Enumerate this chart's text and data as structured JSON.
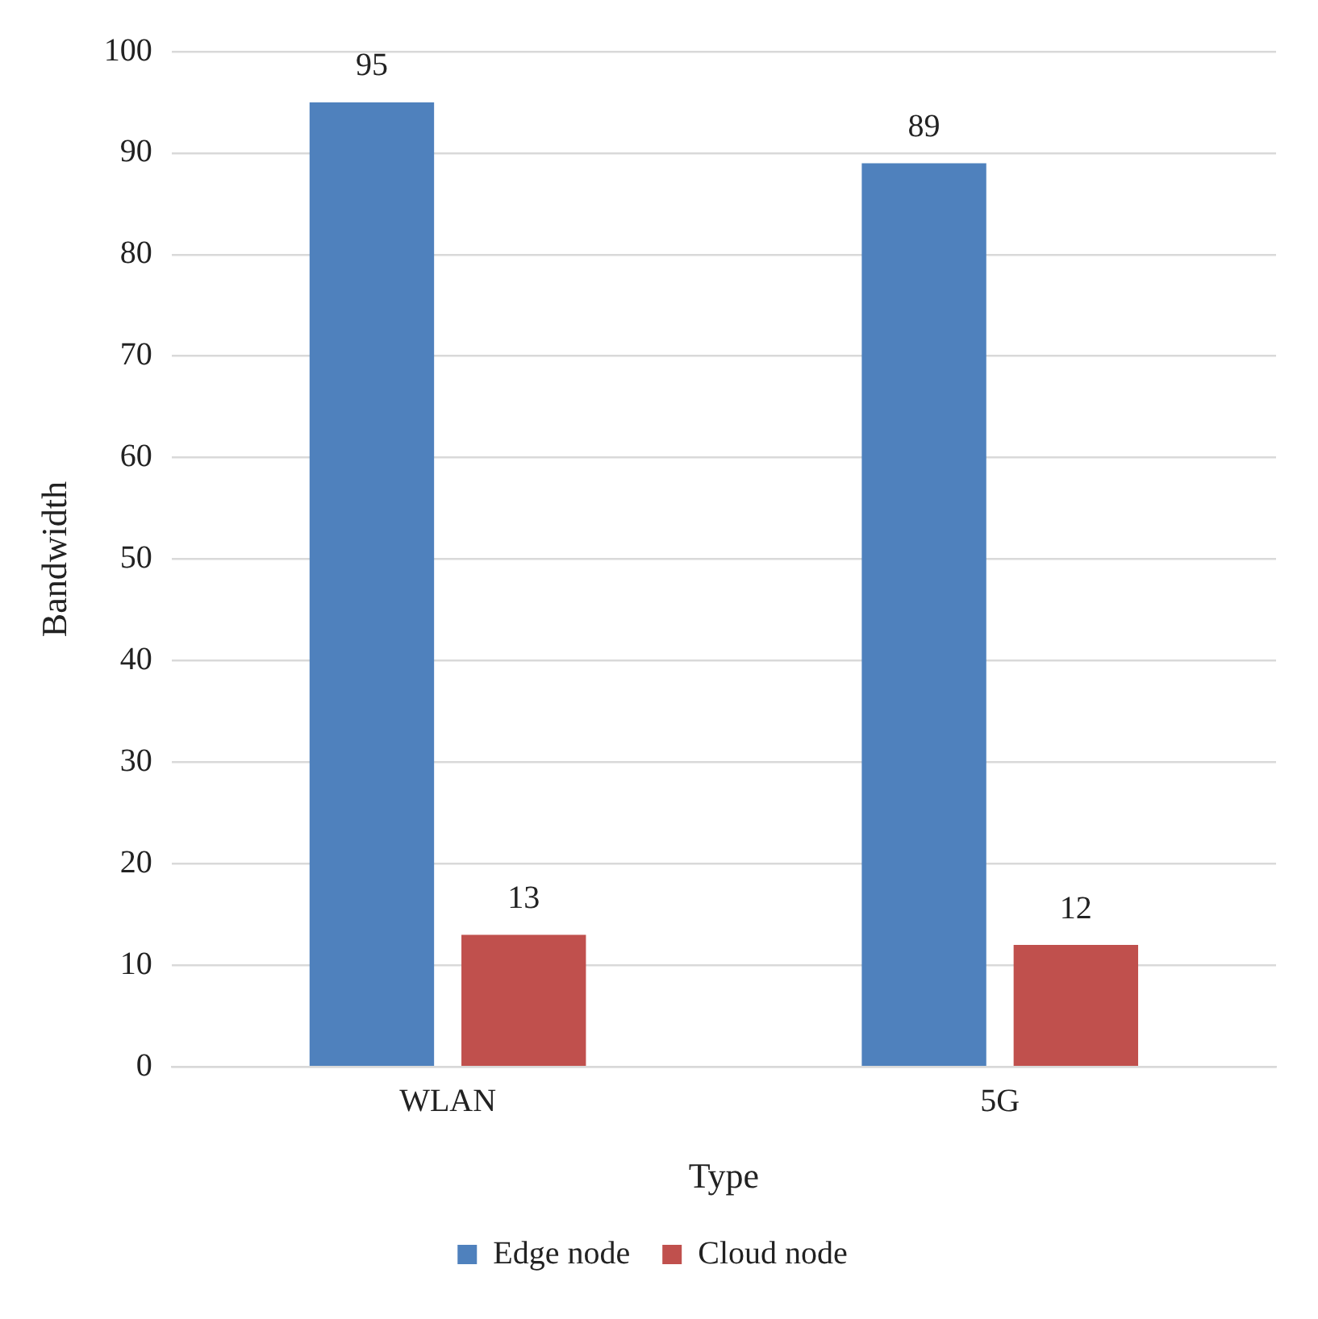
{
  "chart_data": {
    "type": "bar",
    "xlabel": "Type",
    "ylabel": "Bandwidth",
    "categories": [
      "WLAN",
      "5G"
    ],
    "series": [
      {
        "name": "Edge node",
        "color": "#4f81bd",
        "values": [
          95,
          89
        ]
      },
      {
        "name": "Cloud node",
        "color": "#c0504d",
        "values": [
          13,
          12
        ]
      }
    ],
    "ylim": [
      0,
      100
    ],
    "yticks": [
      0,
      10,
      20,
      30,
      40,
      50,
      60,
      70,
      80,
      90,
      100
    ],
    "grid": "y",
    "legend": "bottom",
    "data_labels": true
  }
}
